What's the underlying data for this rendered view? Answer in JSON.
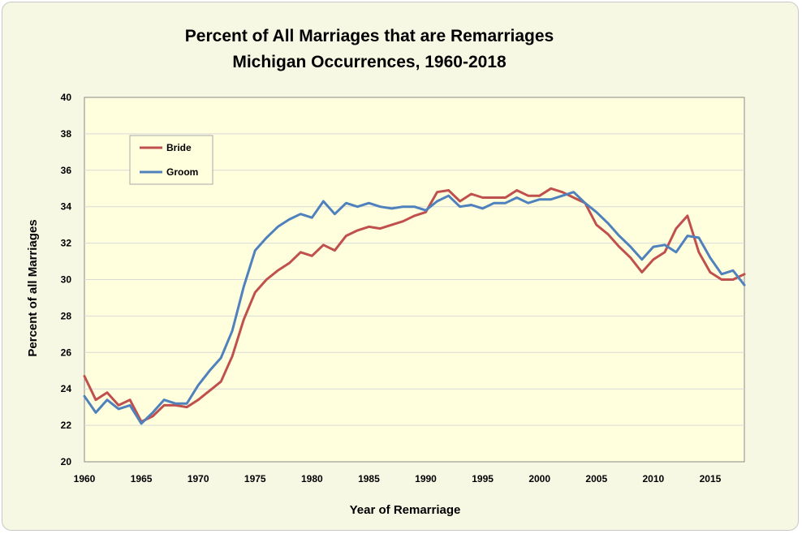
{
  "chart_data": {
    "type": "line",
    "title": "Percent of All Marriages that are Remarriages",
    "subtitle": "Michigan Occurrences, 1960-2018",
    "xlabel": "Year of Remarriage",
    "ylabel": "Percent of all Marriages",
    "xlim": [
      1960,
      2018
    ],
    "ylim": [
      20,
      40
    ],
    "x_ticks": [
      1960,
      1965,
      1970,
      1975,
      1980,
      1985,
      1990,
      1995,
      2000,
      2005,
      2010,
      2015
    ],
    "y_ticks": [
      20,
      22,
      24,
      26,
      28,
      30,
      32,
      34,
      36,
      38,
      40
    ],
    "grid": "horizontal",
    "legend_position": "top-left",
    "x": [
      1960,
      1961,
      1962,
      1963,
      1964,
      1965,
      1966,
      1967,
      1968,
      1969,
      1970,
      1971,
      1972,
      1973,
      1974,
      1975,
      1976,
      1977,
      1978,
      1979,
      1980,
      1981,
      1982,
      1983,
      1984,
      1985,
      1986,
      1987,
      1988,
      1989,
      1990,
      1991,
      1992,
      1993,
      1994,
      1995,
      1996,
      1997,
      1998,
      1999,
      2000,
      2001,
      2002,
      2003,
      2004,
      2005,
      2006,
      2007,
      2008,
      2009,
      2010,
      2011,
      2012,
      2013,
      2014,
      2015,
      2016,
      2017,
      2018
    ],
    "series": [
      {
        "name": "Bride",
        "color": "#c0504d",
        "values": [
          24.7,
          23.4,
          23.8,
          23.1,
          23.4,
          22.2,
          22.5,
          23.1,
          23.1,
          23.0,
          23.4,
          23.9,
          24.4,
          25.8,
          27.8,
          29.3,
          30.0,
          30.5,
          30.9,
          31.5,
          31.3,
          31.9,
          31.6,
          32.4,
          32.7,
          32.9,
          32.8,
          33.0,
          33.2,
          33.5,
          33.7,
          34.8,
          34.9,
          34.3,
          34.7,
          34.5,
          34.5,
          34.5,
          34.9,
          34.6,
          34.6,
          35.0,
          34.8,
          34.5,
          34.2,
          33.0,
          32.5,
          31.8,
          31.2,
          30.4,
          31.1,
          31.5,
          32.8,
          33.5,
          31.5,
          30.4,
          30.0,
          30.0,
          30.3
        ]
      },
      {
        "name": "Groom",
        "color": "#4f81bd",
        "values": [
          23.6,
          22.7,
          23.4,
          22.9,
          23.1,
          22.1,
          22.7,
          23.4,
          23.2,
          23.2,
          24.2,
          25.0,
          25.7,
          27.2,
          29.6,
          31.6,
          32.3,
          32.9,
          33.3,
          33.6,
          33.4,
          34.3,
          33.6,
          34.2,
          34.0,
          34.2,
          34.0,
          33.9,
          34.0,
          34.0,
          33.8,
          34.3,
          34.6,
          34.0,
          34.1,
          33.9,
          34.2,
          34.2,
          34.5,
          34.2,
          34.4,
          34.4,
          34.6,
          34.8,
          34.2,
          33.7,
          33.1,
          32.4,
          31.8,
          31.1,
          31.8,
          31.9,
          31.5,
          32.4,
          32.3,
          31.2,
          30.3,
          30.5,
          29.7
        ]
      }
    ]
  }
}
